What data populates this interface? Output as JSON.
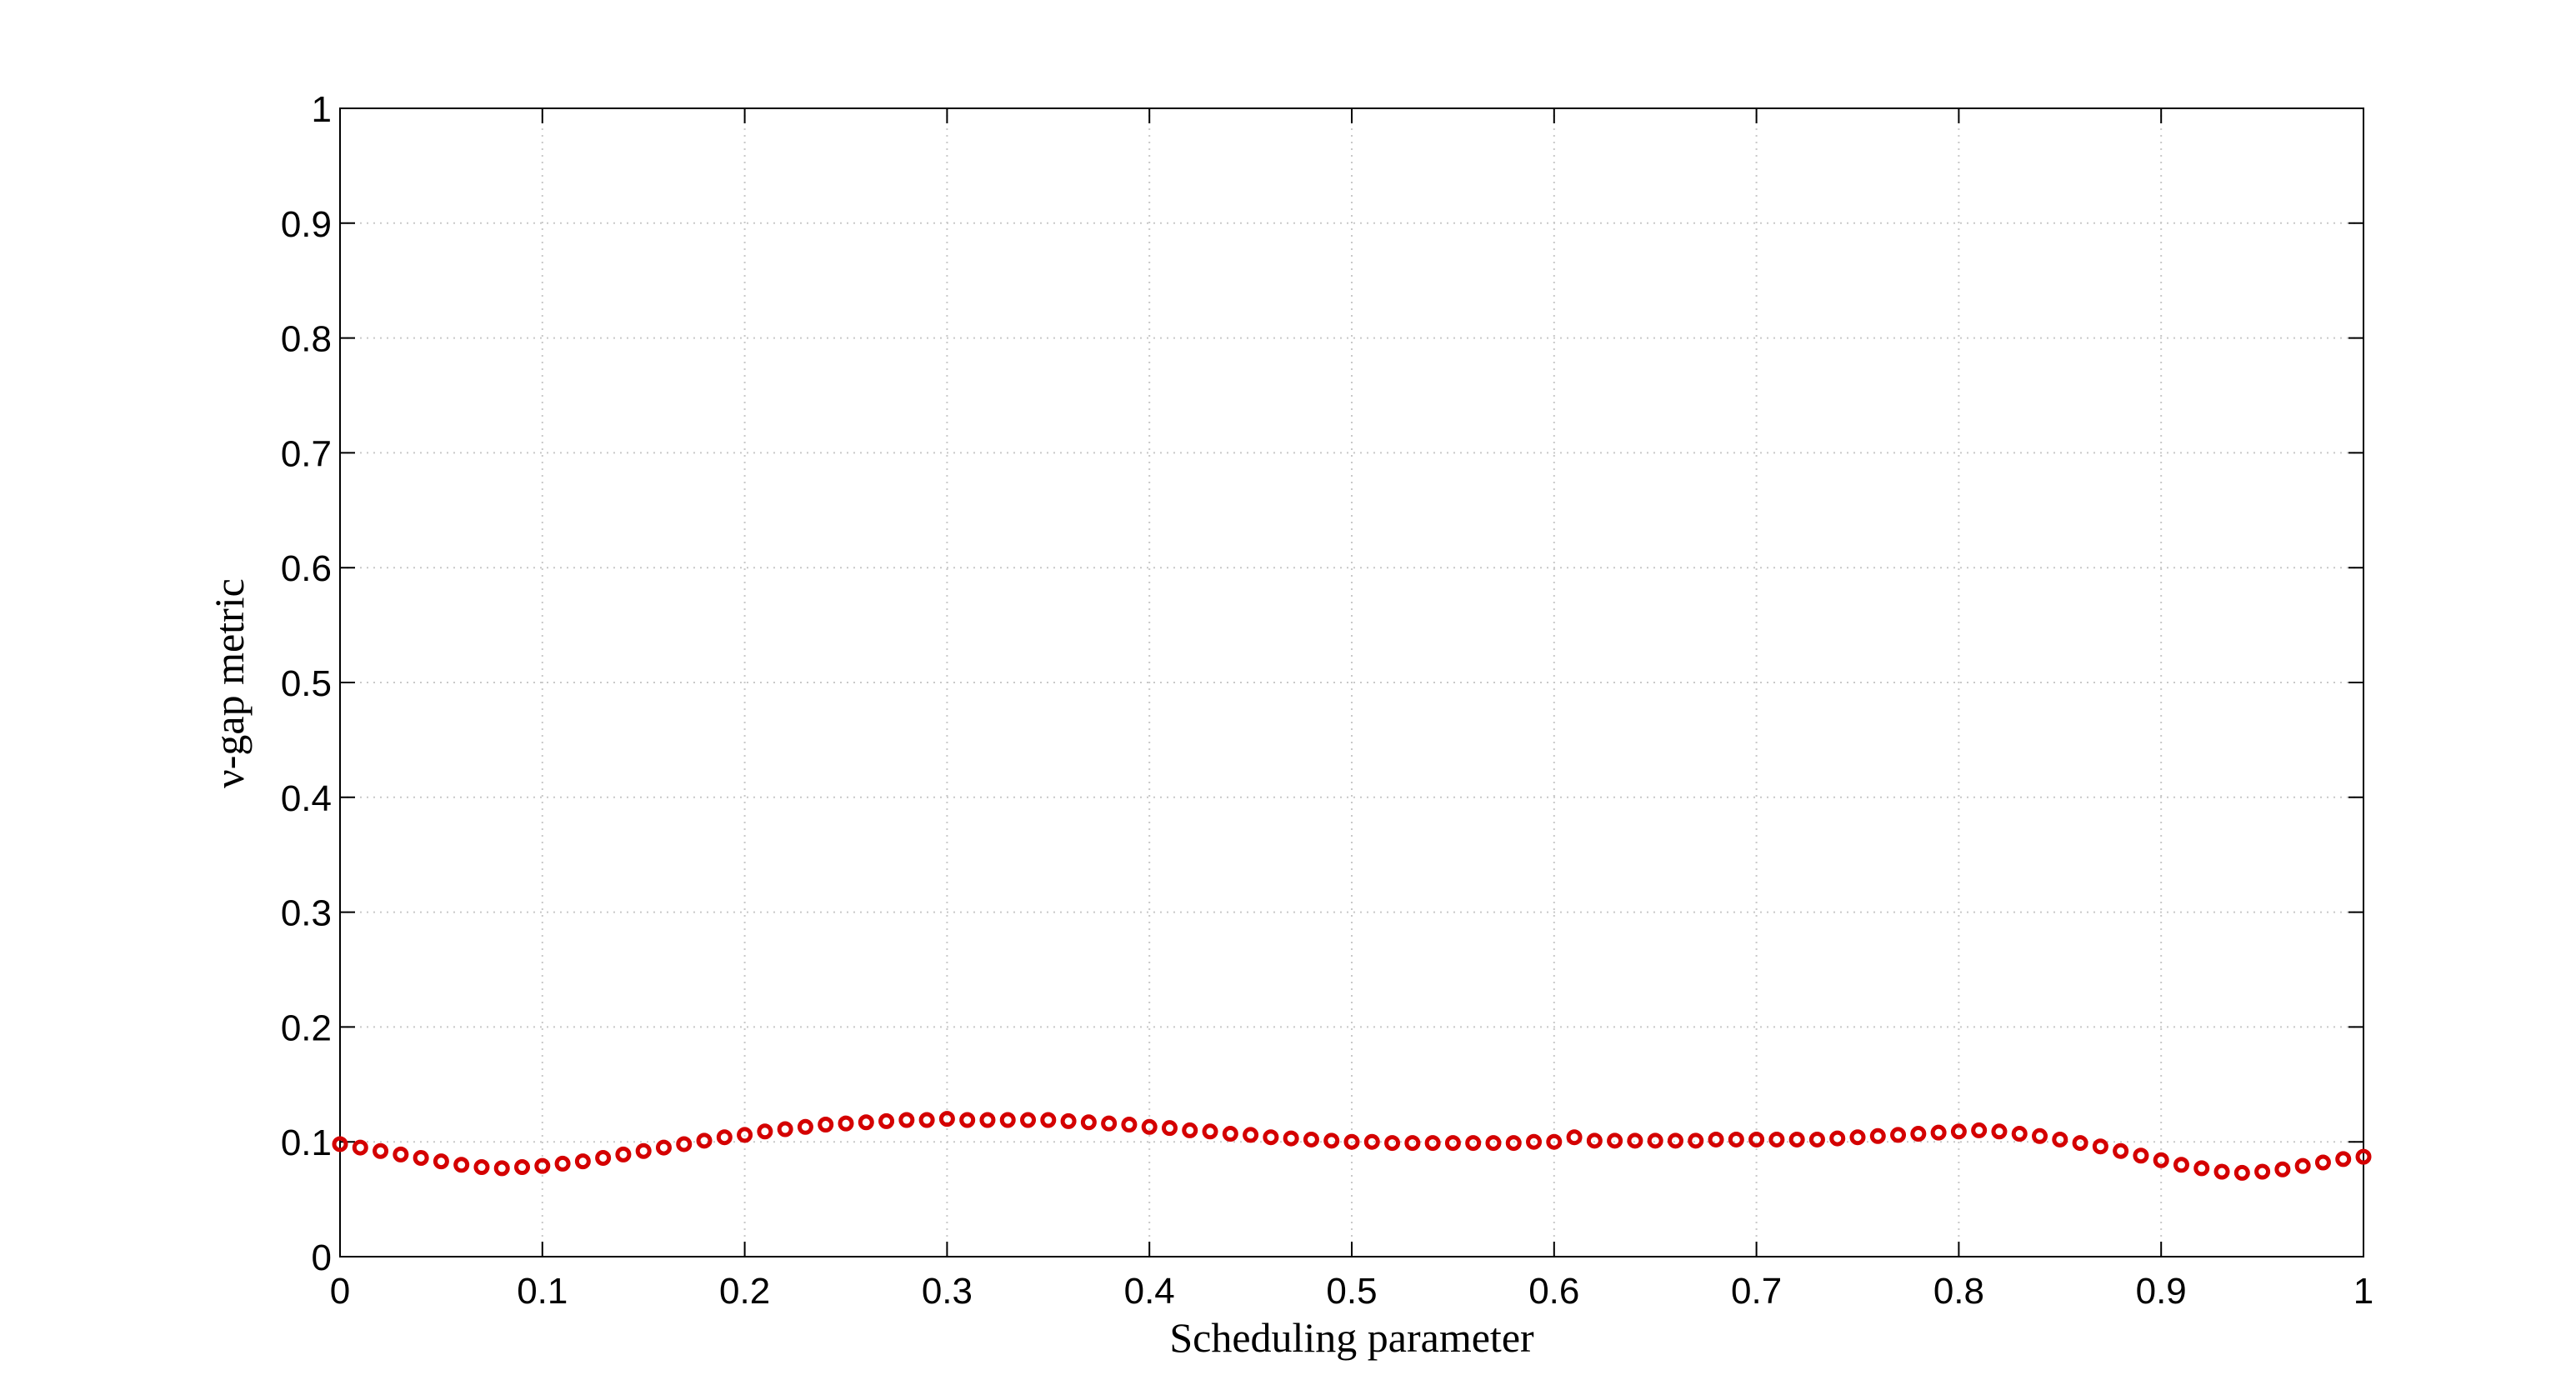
{
  "chart_data": {
    "type": "scatter",
    "xlabel": "Scheduling parameter",
    "ylabel": "ν-gap metric",
    "xlim": [
      0,
      1
    ],
    "ylim": [
      0,
      1
    ],
    "xticks": [
      0,
      0.1,
      0.2,
      0.3,
      0.4,
      0.5,
      0.6,
      0.7,
      0.8,
      0.9,
      1
    ],
    "yticks": [
      0,
      0.1,
      0.2,
      0.3,
      0.4,
      0.5,
      0.6,
      0.7,
      0.8,
      0.9,
      1
    ],
    "grid": true,
    "color": "#d40000",
    "x": [
      0,
      0.01,
      0.02,
      0.03,
      0.04,
      0.05,
      0.06,
      0.07,
      0.08,
      0.09,
      0.1,
      0.11,
      0.12,
      0.13,
      0.14,
      0.15,
      0.16,
      0.17,
      0.18,
      0.19,
      0.2,
      0.21,
      0.22,
      0.23,
      0.24,
      0.25,
      0.26,
      0.27,
      0.28,
      0.29,
      0.3,
      0.31,
      0.32,
      0.33,
      0.34,
      0.35,
      0.36,
      0.37,
      0.38,
      0.39,
      0.4,
      0.41,
      0.42,
      0.43,
      0.44,
      0.45,
      0.46,
      0.47,
      0.48,
      0.49,
      0.5,
      0.51,
      0.52,
      0.53,
      0.54,
      0.55,
      0.56,
      0.57,
      0.58,
      0.59,
      0.6,
      0.61,
      0.62,
      0.63,
      0.64,
      0.65,
      0.66,
      0.67,
      0.68,
      0.69,
      0.7,
      0.71,
      0.72,
      0.73,
      0.74,
      0.75,
      0.76,
      0.77,
      0.78,
      0.79,
      0.8,
      0.81,
      0.82,
      0.83,
      0.84,
      0.85,
      0.86,
      0.87,
      0.88,
      0.89,
      0.9,
      0.91,
      0.92,
      0.93,
      0.94,
      0.95,
      0.96,
      0.97,
      0.98,
      0.99,
      1
    ],
    "values": [
      0.098,
      0.095,
      0.092,
      0.089,
      0.086,
      0.083,
      0.08,
      0.078,
      0.077,
      0.078,
      0.079,
      0.081,
      0.083,
      0.086,
      0.089,
      0.092,
      0.095,
      0.098,
      0.101,
      0.104,
      0.106,
      0.109,
      0.111,
      0.113,
      0.115,
      0.116,
      0.117,
      0.118,
      0.119,
      0.119,
      0.12,
      0.119,
      0.119,
      0.119,
      0.119,
      0.119,
      0.118,
      0.117,
      0.116,
      0.115,
      0.113,
      0.112,
      0.11,
      0.109,
      0.107,
      0.106,
      0.104,
      0.103,
      0.102,
      0.101,
      0.1,
      0.1,
      0.099,
      0.099,
      0.099,
      0.099,
      0.099,
      0.099,
      0.099,
      0.1,
      0.1,
      0.104,
      0.101,
      0.101,
      0.101,
      0.101,
      0.101,
      0.101,
      0.102,
      0.102,
      0.102,
      0.102,
      0.102,
      0.102,
      0.103,
      0.104,
      0.105,
      0.106,
      0.107,
      0.108,
      0.109,
      0.11,
      0.109,
      0.107,
      0.105,
      0.102,
      0.099,
      0.096,
      0.092,
      0.088,
      0.084,
      0.08,
      0.077,
      0.074,
      0.073,
      0.074,
      0.076,
      0.079,
      0.082,
      0.085,
      0.087
    ]
  }
}
